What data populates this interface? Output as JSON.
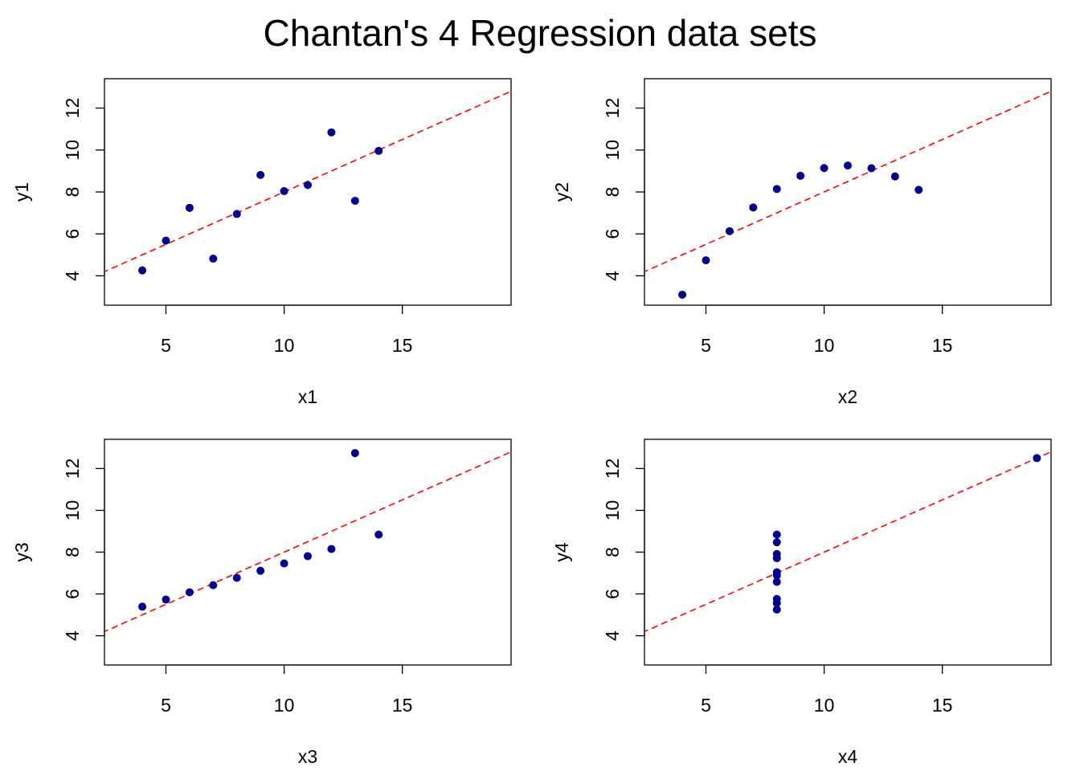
{
  "title": "Chantan's 4 Regression data sets",
  "colors": {
    "points": "#00008B",
    "fit_line": "#FF0000",
    "frame": "#000000"
  },
  "chart_data": [
    {
      "type": "scatter",
      "xlabel": "x1",
      "ylabel": "y1",
      "xlim": [
        2.4,
        19.6
      ],
      "ylim": [
        2.6,
        13.4
      ],
      "xticks": [
        5,
        10,
        15
      ],
      "yticks": [
        4,
        6,
        8,
        10,
        12
      ],
      "x": [
        10,
        8,
        13,
        9,
        11,
        14,
        6,
        4,
        12,
        7,
        5
      ],
      "y": [
        8.04,
        6.95,
        7.58,
        8.81,
        8.33,
        9.96,
        7.24,
        4.26,
        10.84,
        4.82,
        5.68
      ],
      "fit": {
        "intercept": 3.0,
        "slope": 0.5,
        "style": "dashed"
      }
    },
    {
      "type": "scatter",
      "xlabel": "x2",
      "ylabel": "y2",
      "xlim": [
        2.4,
        19.6
      ],
      "ylim": [
        2.6,
        13.4
      ],
      "xticks": [
        5,
        10,
        15
      ],
      "yticks": [
        4,
        6,
        8,
        10,
        12
      ],
      "x": [
        10,
        8,
        13,
        9,
        11,
        14,
        6,
        4,
        12,
        7,
        5
      ],
      "y": [
        9.14,
        8.14,
        8.74,
        8.77,
        9.26,
        8.1,
        6.13,
        3.1,
        9.13,
        7.26,
        4.74
      ],
      "fit": {
        "intercept": 3.0,
        "slope": 0.5,
        "style": "dashed"
      }
    },
    {
      "type": "scatter",
      "xlabel": "x3",
      "ylabel": "y3",
      "xlim": [
        2.4,
        19.6
      ],
      "ylim": [
        2.6,
        13.4
      ],
      "xticks": [
        5,
        10,
        15
      ],
      "yticks": [
        4,
        6,
        8,
        10,
        12
      ],
      "x": [
        10,
        8,
        13,
        9,
        11,
        14,
        6,
        4,
        12,
        7,
        5
      ],
      "y": [
        7.46,
        6.77,
        12.74,
        7.11,
        7.81,
        8.84,
        6.08,
        5.39,
        8.15,
        6.42,
        5.73
      ],
      "fit": {
        "intercept": 3.0,
        "slope": 0.5,
        "style": "dashed"
      }
    },
    {
      "type": "scatter",
      "xlabel": "x4",
      "ylabel": "y4",
      "xlim": [
        2.4,
        19.6
      ],
      "ylim": [
        2.6,
        13.4
      ],
      "xticks": [
        5,
        10,
        15
      ],
      "yticks": [
        4,
        6,
        8,
        10,
        12
      ],
      "x": [
        8,
        8,
        8,
        8,
        8,
        8,
        8,
        19,
        8,
        8,
        8
      ],
      "y": [
        6.58,
        5.76,
        7.71,
        8.84,
        8.47,
        7.04,
        5.25,
        12.5,
        5.56,
        7.91,
        6.89
      ],
      "fit": {
        "intercept": 3.0,
        "slope": 0.5,
        "style": "dashed"
      }
    }
  ]
}
